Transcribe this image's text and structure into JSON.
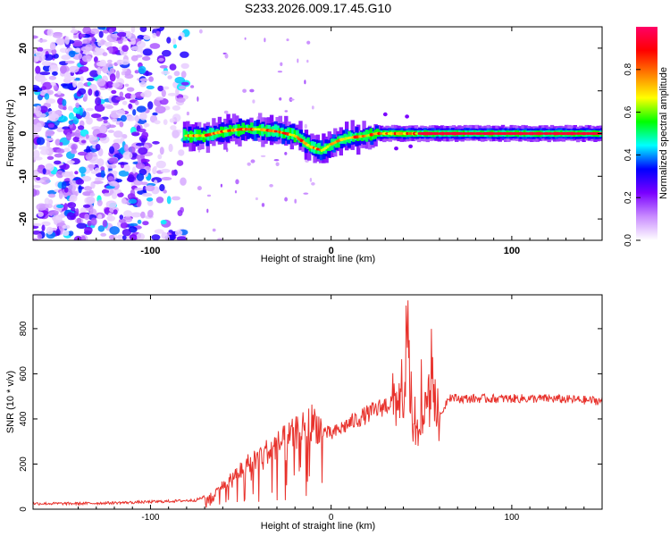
{
  "title": "S233.2026.009.17.45.G10",
  "colors": {
    "snr_line": "#e8322c",
    "axis": "#000000",
    "background": "#ffffff"
  },
  "chart_data": [
    {
      "type": "heatmap",
      "xlabel": "Height of straight line (km)",
      "ylabel": "Frequency (Hz)",
      "xlim": [
        -165,
        150
      ],
      "ylim": [
        -25,
        25
      ],
      "x_ticks": [
        -100,
        0,
        100
      ],
      "y_ticks": [
        -20,
        -10,
        0,
        10,
        20
      ],
      "colorbar": {
        "label": "Normalized spectral amplitude",
        "range": [
          0,
          1
        ],
        "ticks": [
          0.0,
          0.2,
          0.4,
          0.6,
          0.8
        ],
        "colormap": [
          "#ffffff",
          "#c98cff",
          "#7a00ff",
          "#0000ff",
          "#00ffff",
          "#00ff00",
          "#ffff00",
          "#ff8000",
          "#ff0000",
          "#ff0066"
        ]
      },
      "noise_region_km": [
        -165,
        -80
      ],
      "ridge": {
        "height_km": [
          -82,
          -70,
          -60,
          -50,
          -40,
          -30,
          -20,
          -12,
          -5,
          0,
          5,
          10,
          20,
          25,
          30,
          35,
          40,
          45,
          55,
          70,
          90,
          110,
          130,
          150
        ],
        "frequency_hz": [
          -0.5,
          -0.5,
          0.5,
          1.0,
          1.0,
          0.5,
          -0.5,
          -3.0,
          -4.0,
          -2.5,
          -1.5,
          -1.0,
          -0.5,
          0.0,
          0.0,
          0.0,
          0.0,
          0.0,
          0.0,
          0.0,
          0.0,
          0.0,
          0.0,
          0.0
        ]
      }
    },
    {
      "type": "line",
      "xlabel": "Height of straight line (km)",
      "ylabel": "SNR (10 * v/v)",
      "xlim": [
        -165,
        150
      ],
      "ylim": [
        0,
        950
      ],
      "x_ticks": [
        -100,
        0,
        100
      ],
      "y_ticks": [
        0,
        200,
        400,
        600,
        800
      ],
      "series": [
        {
          "name": "SNR",
          "x": [
            -165,
            -140,
            -110,
            -90,
            -75,
            -65,
            -55,
            -45,
            -35,
            -25,
            -15,
            -10,
            -5,
            0,
            10,
            20,
            30,
            35,
            38,
            40,
            42,
            45,
            50,
            55,
            60,
            65,
            70,
            80,
            100,
            120,
            150
          ],
          "y": [
            25,
            25,
            30,
            35,
            40,
            70,
            140,
            210,
            260,
            310,
            360,
            390,
            350,
            330,
            380,
            420,
            460,
            480,
            500,
            330,
            900,
            300,
            350,
            520,
            400,
            500,
            490,
            490,
            490,
            490,
            480
          ]
        }
      ]
    }
  ]
}
